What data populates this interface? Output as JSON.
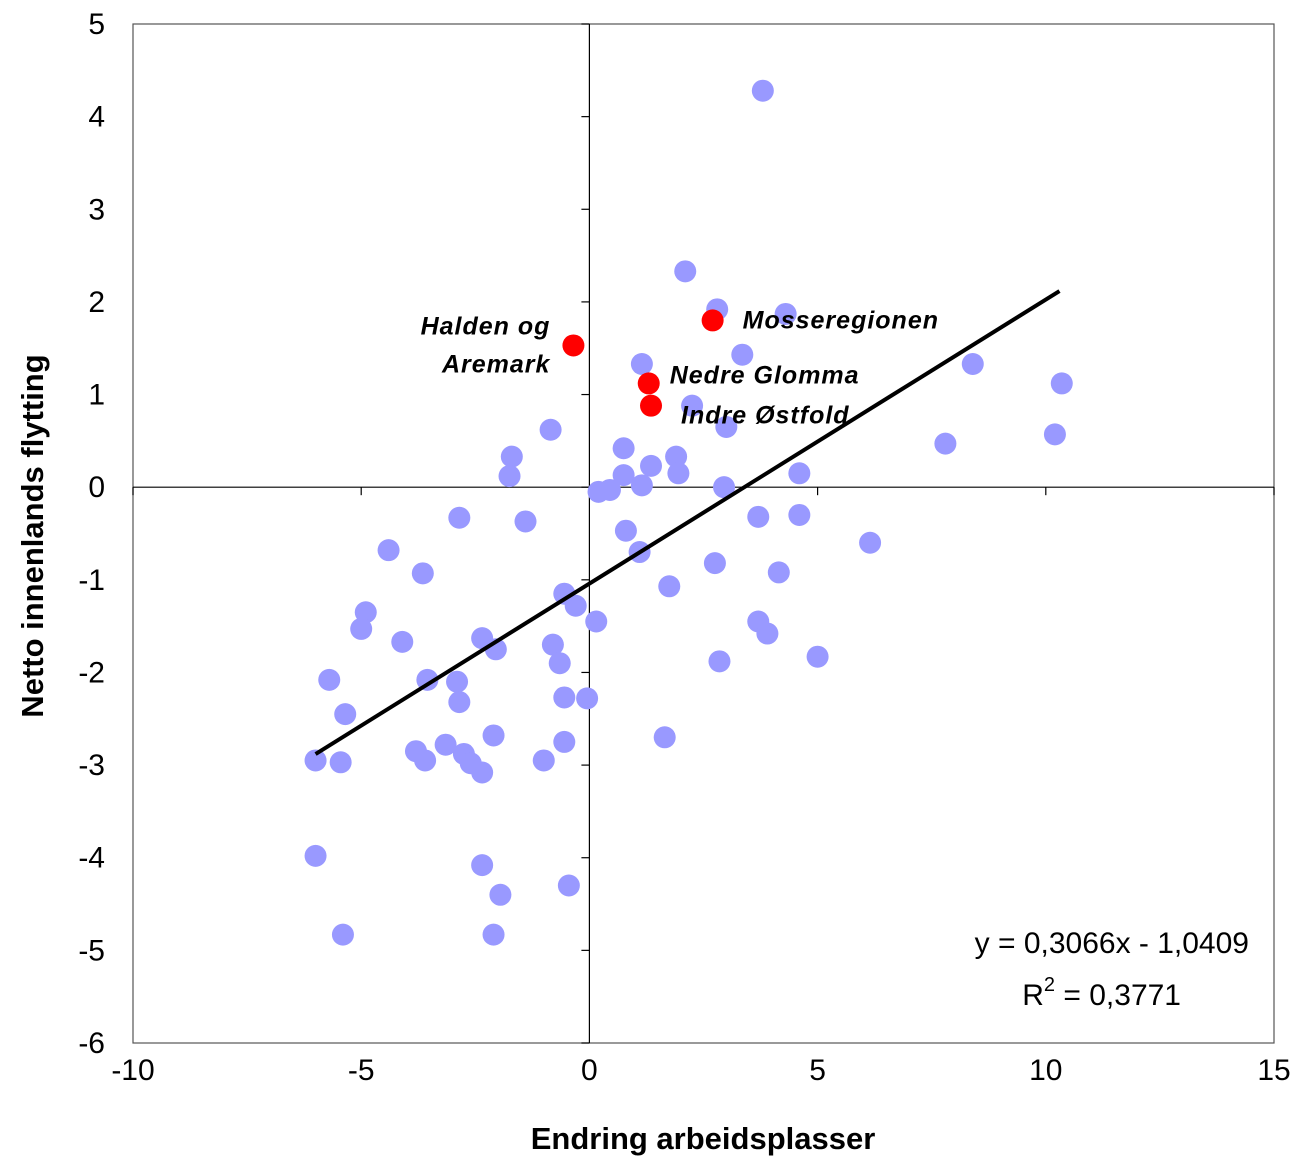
{
  "chart_data": {
    "type": "scatter",
    "title": "",
    "xlabel": "Endring arbeidsplasser",
    "ylabel": "Netto innenlands flytting",
    "xlim": [
      -10,
      15
    ],
    "ylim": [
      -6,
      5
    ],
    "xticks": [
      -10,
      -5,
      0,
      5,
      10,
      15
    ],
    "yticks": [
      5,
      4,
      3,
      2,
      1,
      0,
      -1,
      -2,
      -3,
      -4,
      -5,
      -6
    ],
    "grid": false,
    "colors": {
      "other": "#9999ff",
      "highlight": "#ff0000",
      "trend": "#000000"
    },
    "series": [
      {
        "points": [
          [
            3.8,
            4.28
          ],
          [
            2.1,
            2.33
          ],
          [
            2.8,
            1.92
          ],
          [
            4.3,
            1.87
          ],
          [
            1.15,
            1.33
          ],
          [
            3.35,
            1.43
          ],
          [
            8.4,
            1.33
          ],
          [
            10.35,
            1.12
          ],
          [
            2.25,
            0.88
          ],
          [
            3.0,
            0.65
          ],
          [
            -0.85,
            0.62
          ],
          [
            10.2,
            0.57
          ],
          [
            7.8,
            0.47
          ],
          [
            0.75,
            0.42
          ],
          [
            1.9,
            0.33
          ],
          [
            -1.7,
            0.33
          ],
          [
            1.35,
            0.23
          ],
          [
            1.95,
            0.15
          ],
          [
            0.75,
            0.13
          ],
          [
            -1.75,
            0.12
          ],
          [
            4.6,
            0.15
          ],
          [
            1.15,
            0.02
          ],
          [
            2.95,
            0.0
          ],
          [
            0.2,
            -0.05
          ],
          [
            0.45,
            -0.03
          ],
          [
            -2.85,
            -0.33
          ],
          [
            -1.4,
            -0.37
          ],
          [
            3.7,
            -0.32
          ],
          [
            4.6,
            -0.3
          ],
          [
            0.8,
            -0.47
          ],
          [
            -4.4,
            -0.68
          ],
          [
            1.1,
            -0.7
          ],
          [
            6.15,
            -0.6
          ],
          [
            -3.65,
            -0.93
          ],
          [
            4.15,
            -0.92
          ],
          [
            2.75,
            -0.82
          ],
          [
            1.75,
            -1.07
          ],
          [
            -0.55,
            -1.15
          ],
          [
            -0.3,
            -1.28
          ],
          [
            -4.9,
            -1.35
          ],
          [
            0.15,
            -1.45
          ],
          [
            3.7,
            -1.45
          ],
          [
            -2.35,
            -1.63
          ],
          [
            -5.0,
            -1.53
          ],
          [
            -4.1,
            -1.67
          ],
          [
            3.9,
            -1.58
          ],
          [
            -0.8,
            -1.7
          ],
          [
            -2.05,
            -1.75
          ],
          [
            -0.65,
            -1.9
          ],
          [
            2.85,
            -1.88
          ],
          [
            5.0,
            -1.83
          ],
          [
            -5.7,
            -2.08
          ],
          [
            -3.55,
            -2.08
          ],
          [
            -2.9,
            -2.1
          ],
          [
            -0.55,
            -2.27
          ],
          [
            -0.05,
            -2.28
          ],
          [
            -2.85,
            -2.32
          ],
          [
            -5.35,
            -2.45
          ],
          [
            -2.1,
            -2.68
          ],
          [
            -0.55,
            -2.75
          ],
          [
            1.65,
            -2.7
          ],
          [
            -3.15,
            -2.78
          ],
          [
            -3.8,
            -2.85
          ],
          [
            -2.75,
            -2.88
          ],
          [
            -6.0,
            -2.95
          ],
          [
            -5.45,
            -2.97
          ],
          [
            -3.6,
            -2.95
          ],
          [
            -2.6,
            -2.98
          ],
          [
            -1.0,
            -2.95
          ],
          [
            -2.35,
            -3.08
          ],
          [
            -6.0,
            -3.98
          ],
          [
            -2.35,
            -4.08
          ],
          [
            -1.95,
            -4.4
          ],
          [
            -0.45,
            -4.3
          ],
          [
            -5.4,
            -4.83
          ],
          [
            -2.1,
            -4.83
          ]
        ]
      },
      {
        "points": [
          [
            -0.35,
            1.53
          ],
          [
            2.7,
            1.8
          ],
          [
            1.3,
            1.12
          ],
          [
            1.35,
            0.88
          ]
        ],
        "labels": [
          "Halden og Aremark",
          "Mosseregionen",
          "Nedre Glomma",
          "Indre Østfold"
        ]
      }
    ],
    "trendline": {
      "slope": 0.3066,
      "intercept": -1.0409,
      "x_range": [
        -6.0,
        10.3
      ],
      "equation": "y = 0,3066x - 1,0409",
      "r2_prefix": "R",
      "r2_sup": "2",
      "r2_value": " = 0,3771"
    },
    "annotations": [
      {
        "lines": [
          "Halden og",
          "Aremark"
        ]
      },
      {
        "lines": [
          "Mosseregionen"
        ]
      },
      {
        "lines": [
          "Nedre Glomma"
        ]
      },
      {
        "lines": [
          "Indre Østfold"
        ]
      }
    ]
  }
}
